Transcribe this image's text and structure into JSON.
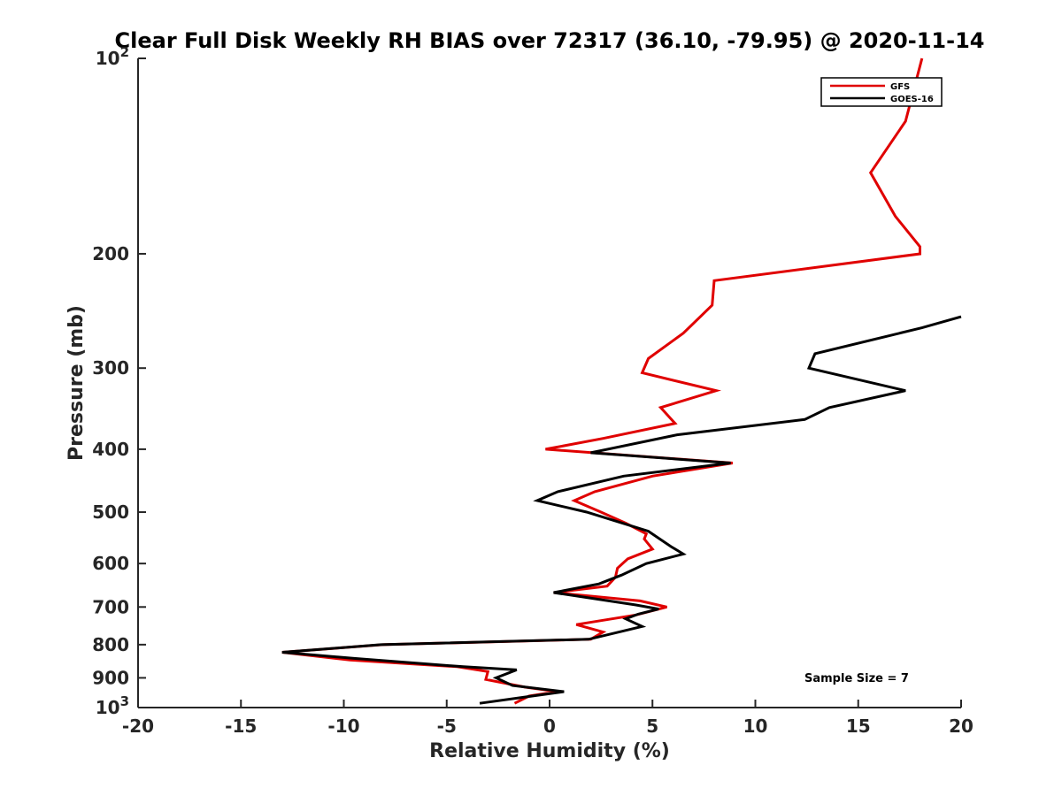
{
  "chart_data": {
    "type": "line",
    "title": "Clear Full Disk Weekly RH BIAS over 72317 (36.10, -79.95) @ 2020-11-14",
    "xlabel": "Relative Humidity (%)",
    "ylabel": "Pressure (mb)",
    "xlim": [
      -20,
      20
    ],
    "ylim": [
      1000,
      100
    ],
    "y_scale": "log",
    "x_ticks": [
      -20,
      -15,
      -10,
      -5,
      0,
      5,
      10,
      15,
      20
    ],
    "y_ticks": [
      {
        "value": 100,
        "base": "10",
        "exp": "2"
      },
      {
        "value": 200,
        "label": "200"
      },
      {
        "value": 300,
        "label": "300"
      },
      {
        "value": 400,
        "label": "400"
      },
      {
        "value": 500,
        "label": "500"
      },
      {
        "value": 600,
        "label": "600"
      },
      {
        "value": 700,
        "label": "700"
      },
      {
        "value": 800,
        "label": "800"
      },
      {
        "value": 900,
        "label": "900"
      },
      {
        "value": 1000,
        "base": "10",
        "exp": "3"
      }
    ],
    "legend_position": "top-right",
    "series": [
      {
        "name": "GFS",
        "color": "#e00000",
        "points": [
          [
            18.1,
            100
          ],
          [
            17.3,
            125
          ],
          [
            15.6,
            150
          ],
          [
            16.8,
            175
          ],
          [
            18.0,
            195
          ],
          [
            18.0,
            200
          ],
          [
            8.0,
            220
          ],
          [
            7.9,
            240
          ],
          [
            6.5,
            265
          ],
          [
            4.8,
            290
          ],
          [
            4.5,
            305
          ],
          [
            8.1,
            325
          ],
          [
            5.4,
            345
          ],
          [
            6.1,
            365
          ],
          [
            2.6,
            385
          ],
          [
            -0.2,
            400
          ],
          [
            8.9,
            420
          ],
          [
            5.0,
            440
          ],
          [
            2.2,
            465
          ],
          [
            1.2,
            480
          ],
          [
            2.5,
            500
          ],
          [
            3.7,
            520
          ],
          [
            4.7,
            540
          ],
          [
            4.6,
            550
          ],
          [
            5.0,
            570
          ],
          [
            3.8,
            590
          ],
          [
            3.3,
            610
          ],
          [
            3.2,
            630
          ],
          [
            2.8,
            650
          ],
          [
            0.2,
            665
          ],
          [
            4.4,
            685
          ],
          [
            5.7,
            700
          ],
          [
            4.2,
            720
          ],
          [
            1.3,
            745
          ],
          [
            2.6,
            765
          ],
          [
            2.0,
            785
          ],
          [
            -8.1,
            800
          ],
          [
            -13.0,
            822
          ],
          [
            -9.7,
            845
          ],
          [
            -4.5,
            865
          ],
          [
            -3.0,
            880
          ],
          [
            -3.1,
            905
          ],
          [
            -1.2,
            930
          ],
          [
            0.4,
            945
          ],
          [
            -1.0,
            960
          ],
          [
            -1.7,
            985
          ]
        ]
      },
      {
        "name": "GOES-16",
        "color": "#000000",
        "points": [
          [
            20.0,
            250
          ],
          [
            18.1,
            260
          ],
          [
            12.9,
            285
          ],
          [
            12.6,
            300
          ],
          [
            17.3,
            325
          ],
          [
            13.6,
            345
          ],
          [
            12.4,
            360
          ],
          [
            6.2,
            380
          ],
          [
            2.0,
            405
          ],
          [
            8.8,
            420
          ],
          [
            3.6,
            440
          ],
          [
            0.4,
            465
          ],
          [
            -0.6,
            480
          ],
          [
            1.8,
            500
          ],
          [
            4.8,
            535
          ],
          [
            5.9,
            565
          ],
          [
            6.5,
            580
          ],
          [
            4.7,
            600
          ],
          [
            3.5,
            625
          ],
          [
            2.4,
            645
          ],
          [
            0.2,
            665
          ],
          [
            4.2,
            695
          ],
          [
            5.3,
            705
          ],
          [
            4.3,
            718
          ],
          [
            3.7,
            730
          ],
          [
            4.5,
            750
          ],
          [
            1.9,
            785
          ],
          [
            -8.2,
            800
          ],
          [
            -13.0,
            822
          ],
          [
            -9.5,
            840
          ],
          [
            -4.2,
            865
          ],
          [
            -1.6,
            875
          ],
          [
            -2.6,
            900
          ],
          [
            -1.8,
            925
          ],
          [
            0.7,
            945
          ],
          [
            -3.4,
            985
          ]
        ]
      }
    ],
    "annotations": [
      "Sample Size = 7"
    ]
  }
}
